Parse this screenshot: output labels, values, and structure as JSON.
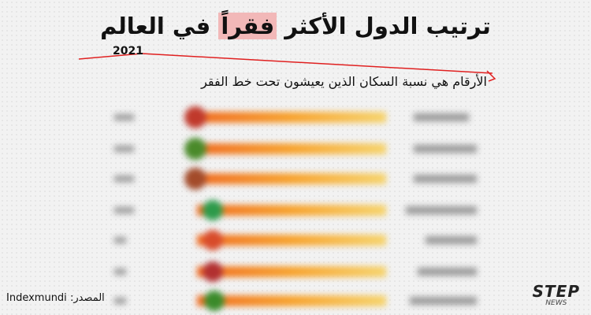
{
  "header": {
    "title": {
      "start": "ترتيب الدول الأكثر",
      "highlight": "فقراً",
      "end": "في العالم"
    },
    "year": "2021",
    "subtitle": "الأرقام هي نسبة السكان الذين يعيشون تحت خط الفقر"
  },
  "footer": {
    "source_label": "المصدر:",
    "source": "Indexmundi"
  },
  "logo": {
    "brand": "STEP",
    "sub": "NEWS"
  }
}
